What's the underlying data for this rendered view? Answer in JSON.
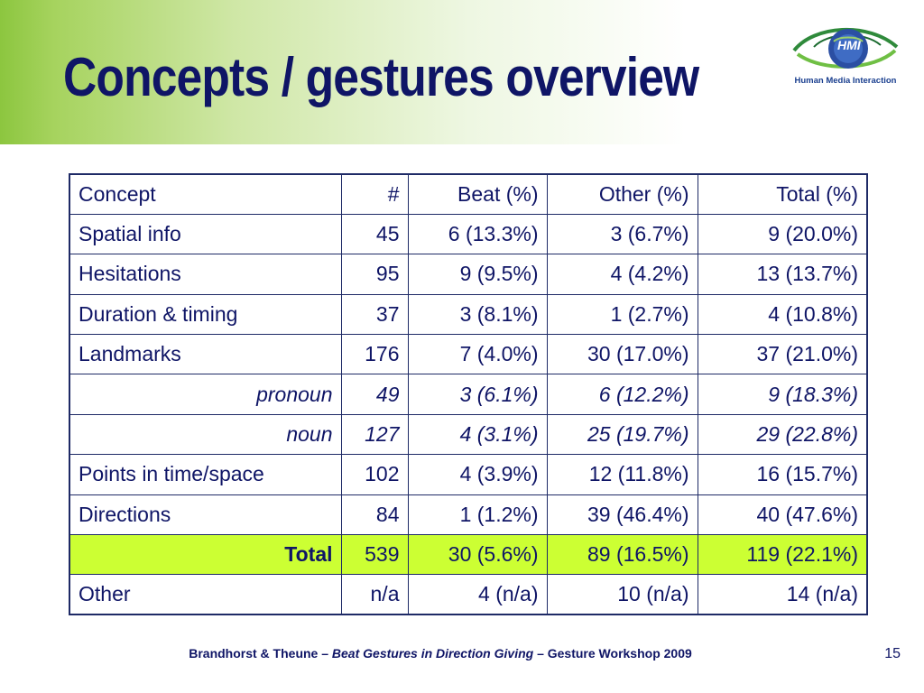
{
  "slide": {
    "title": "Concepts / gestures overview",
    "page_number": "15"
  },
  "logo": {
    "mark": "HMI",
    "caption": "Human Media Interaction",
    "icon": "eye-logo-icon"
  },
  "table": {
    "headers": [
      "Concept",
      "#",
      "Beat (%)",
      "Other (%)",
      "Total (%)"
    ],
    "rows": [
      [
        "Spatial info",
        "45",
        "6 (13.3%)",
        "3 (6.7%)",
        "9 (20.0%)"
      ],
      [
        "Hesitations",
        "95",
        "9 (9.5%)",
        "4 (4.2%)",
        "13 (13.7%)"
      ],
      [
        "Duration & timing",
        "37",
        "3 (8.1%)",
        "1 (2.7%)",
        "4 (10.8%)"
      ],
      [
        "Landmarks",
        "176",
        "7 (4.0%)",
        "30 (17.0%)",
        "37 (21.0%)"
      ],
      [
        "pronoun",
        "49",
        "3 (6.1%)",
        "6 (12.2%)",
        "9 (18.3%)"
      ],
      [
        "noun",
        "127",
        "4 (3.1%)",
        "25 (19.7%)",
        "29 (22.8%)"
      ],
      [
        "Points in time/space",
        "102",
        "4 (3.9%)",
        "12 (11.8%)",
        "16 (15.7%)"
      ],
      [
        "Directions",
        "84",
        "1 (1.2%)",
        "39 (46.4%)",
        "40 (47.6%)"
      ],
      [
        "Total",
        "539",
        "30 (5.6%)",
        "89 (16.5%)",
        "119 (22.1%)"
      ],
      [
        "Other",
        "n/a",
        "4 (n/a)",
        "10 (n/a)",
        "14 (n/a)"
      ]
    ]
  },
  "footer": {
    "authors": "Brandhorst & Theune – ",
    "paper": "Beat Gestures in Direction Giving",
    "venue": " – Gesture Workshop 2009"
  },
  "colors": {
    "title": "#0f1566",
    "header_green": "#8cc63f",
    "total_highlight": "#ccff33",
    "border": "#1e2a66"
  }
}
